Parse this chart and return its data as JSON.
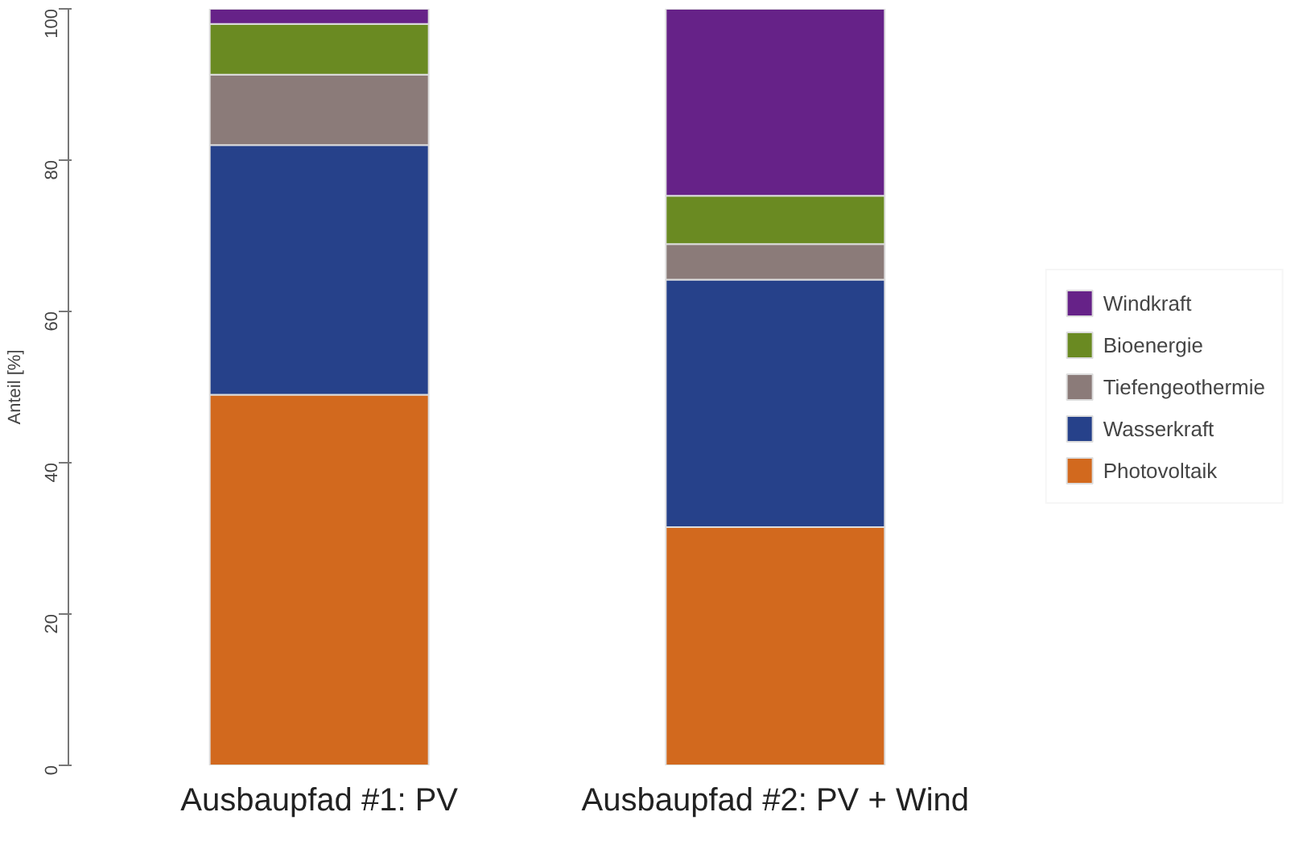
{
  "chart_data": {
    "type": "bar",
    "stacked": true,
    "ylabel": "Anteil [%]",
    "categories": [
      "Ausbaupfad #1: PV",
      "Ausbaupfad #2: PV + Wind"
    ],
    "ylim": [
      0,
      100
    ],
    "yticks": [
      0,
      20,
      40,
      60,
      80,
      100
    ],
    "grid": false,
    "legend": "right",
    "series": [
      {
        "name": "Photovoltaik",
        "color": "#d2691e",
        "values": [
          49,
          31.5
        ]
      },
      {
        "name": "Wasserkraft",
        "color": "#26418a",
        "values": [
          33,
          32.7
        ]
      },
      {
        "name": "Tiefengeothermie",
        "color": "#8b7b79",
        "values": [
          9.3,
          4.7
        ]
      },
      {
        "name": "Bioenergie",
        "color": "#6a8a22",
        "values": [
          6.7,
          6.4
        ]
      },
      {
        "name": "Windkraft",
        "color": "#662288",
        "values": [
          2,
          24.7
        ]
      }
    ]
  }
}
